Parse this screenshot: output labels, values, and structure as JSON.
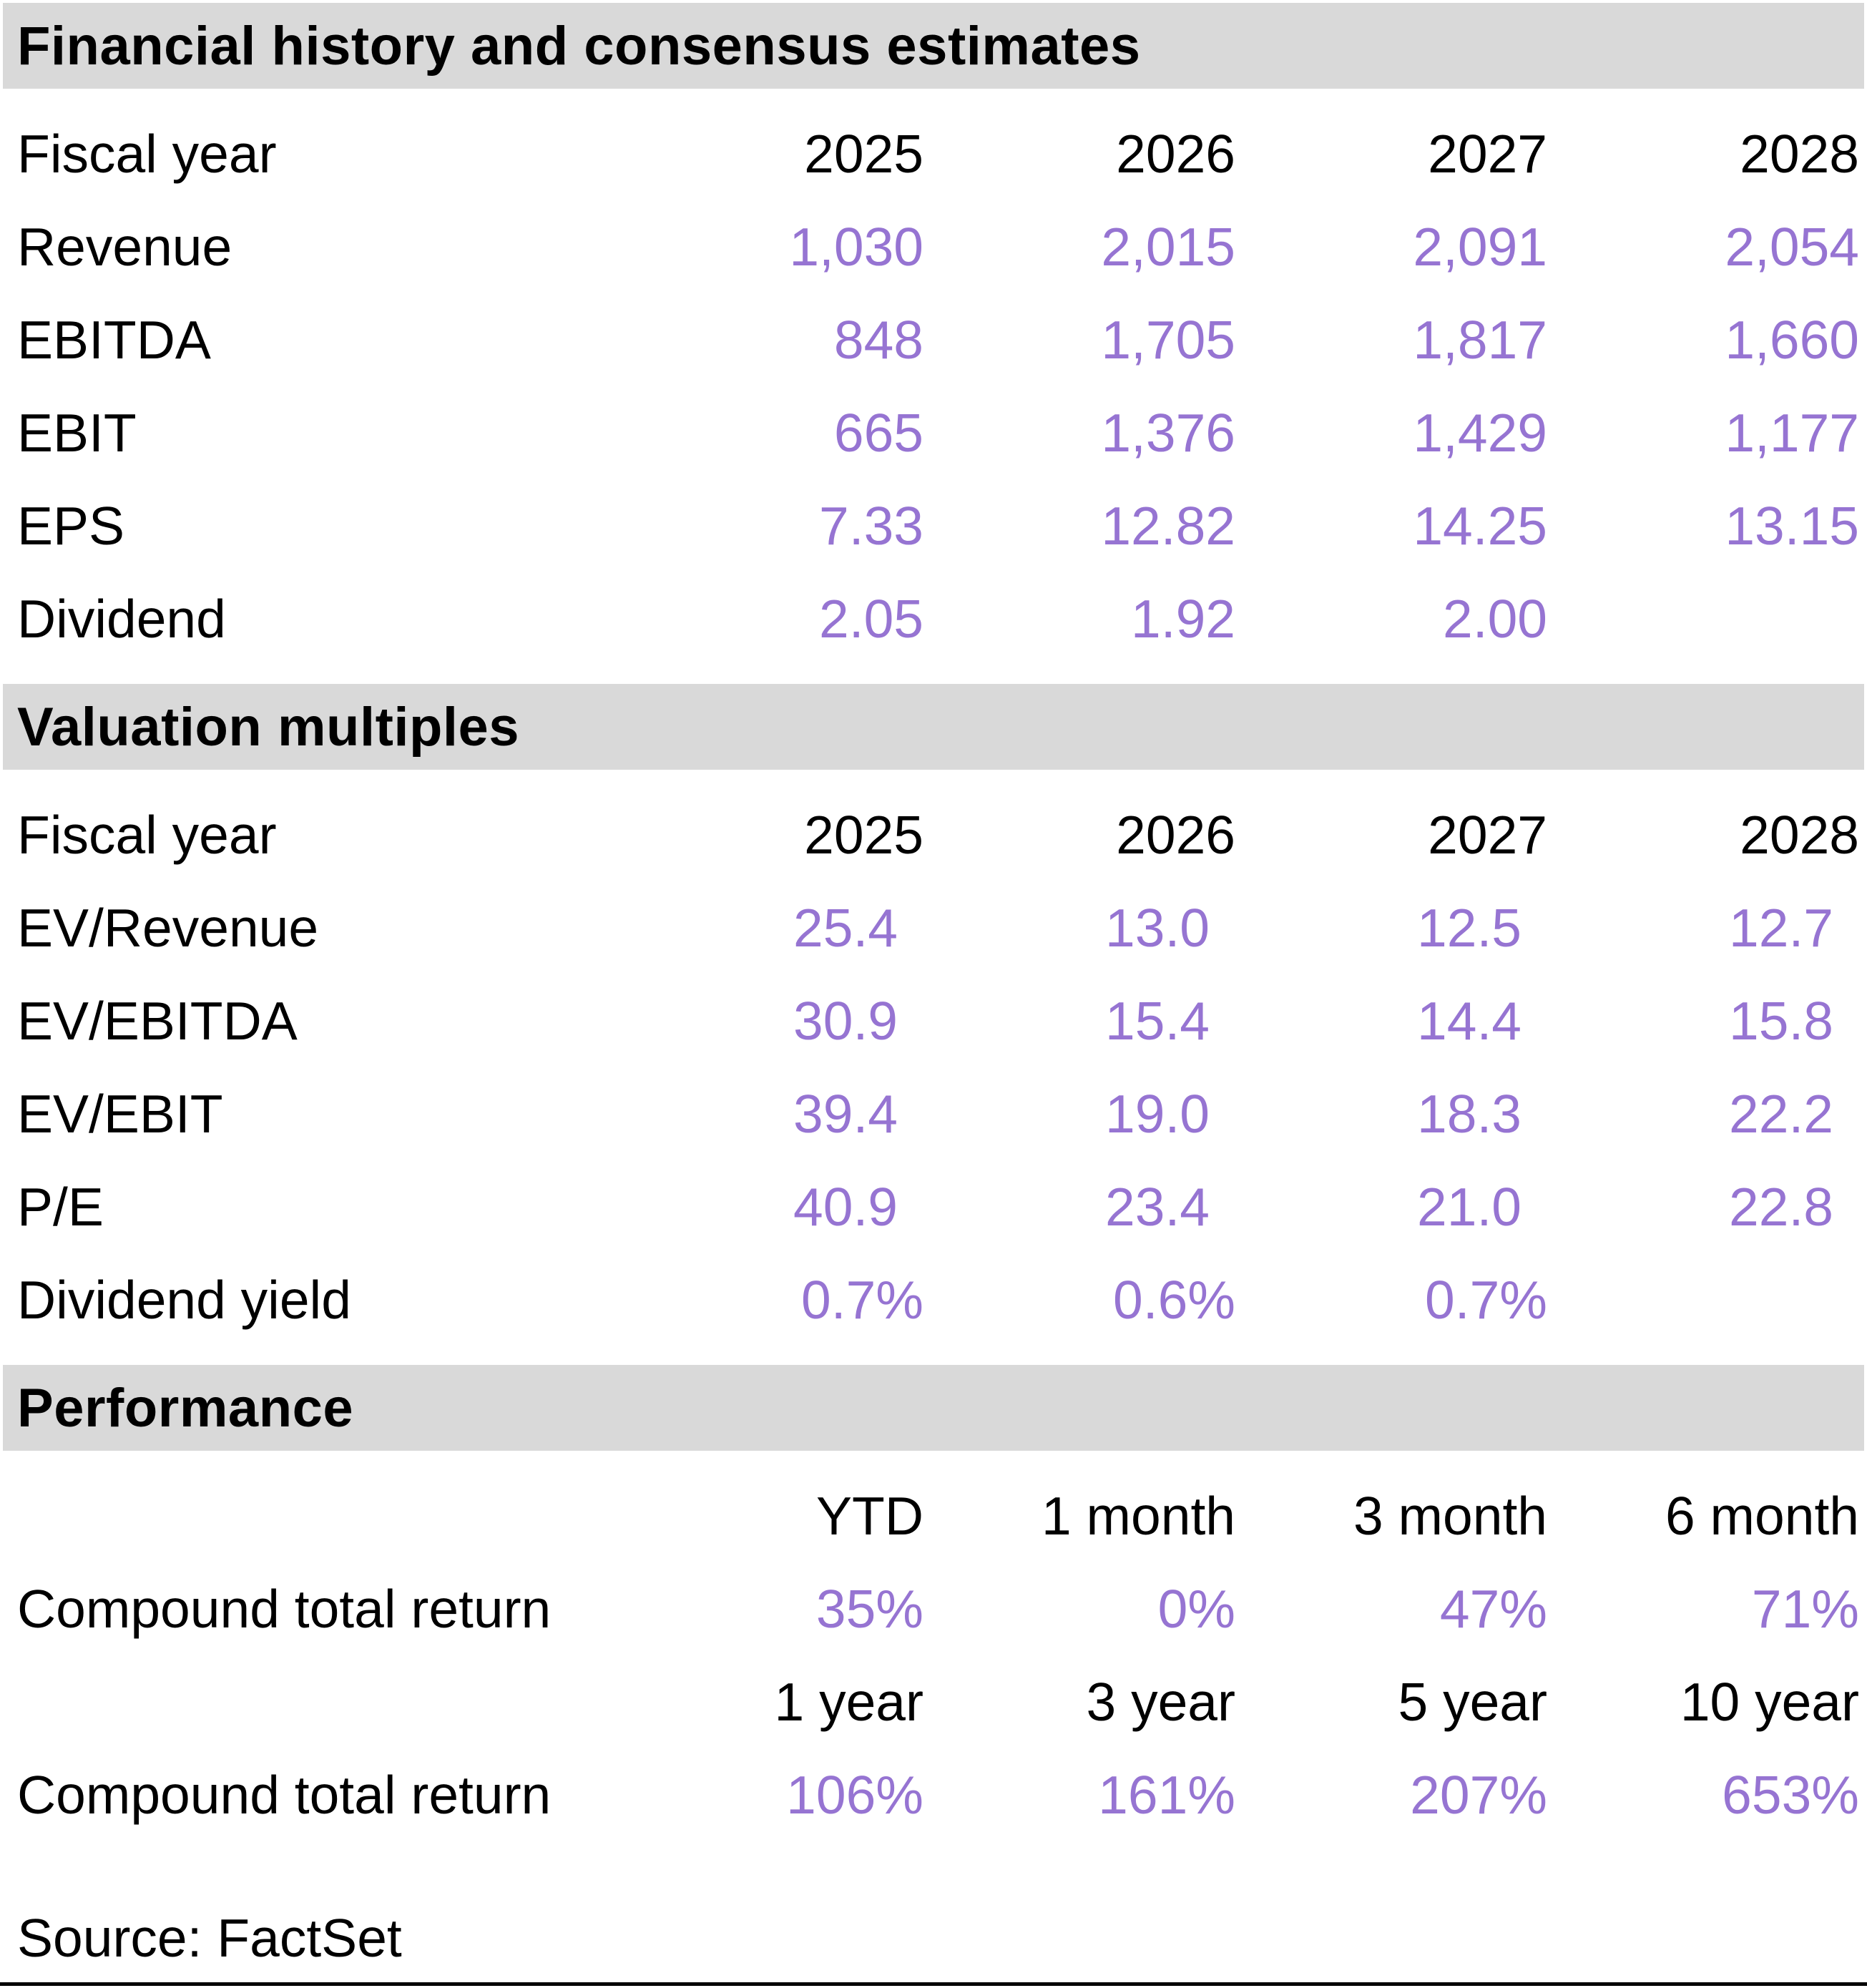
{
  "colors": {
    "accent_value_text": "#9674d2",
    "section_header_bg": "#d9d9d9"
  },
  "sections": [
    {
      "title": "Financial history and consensus estimates",
      "header_row": {
        "label": "Fiscal year",
        "cols": [
          "2025",
          "2026",
          "2027",
          "2028"
        ]
      },
      "rows": [
        {
          "label": "Revenue",
          "values": [
            "1,030",
            "2,015",
            "2,091",
            "2,054"
          ]
        },
        {
          "label": "EBITDA",
          "values": [
            "848",
            "1,705",
            "1,817",
            "1,660"
          ]
        },
        {
          "label": "EBIT",
          "values": [
            "665",
            "1,376",
            "1,429",
            "1,177"
          ]
        },
        {
          "label": "EPS",
          "values": [
            "7.33",
            "12.82",
            "14.25",
            "13.15"
          ]
        },
        {
          "label": "Dividend",
          "values": [
            "2.05",
            "1.92",
            "2.00",
            ""
          ]
        }
      ]
    },
    {
      "title": "Valuation multiples",
      "header_row": {
        "label": "Fiscal year",
        "cols": [
          "2025",
          "2026",
          "2027",
          "2028"
        ]
      },
      "rows": [
        {
          "label": "EV/Revenue",
          "values": [
            "25.4",
            "13.0",
            "12.5",
            "12.7"
          ]
        },
        {
          "label": "EV/EBITDA",
          "values": [
            "30.9",
            "15.4",
            "14.4",
            "15.8"
          ]
        },
        {
          "label": "EV/EBIT",
          "values": [
            "39.4",
            "19.0",
            "18.3",
            "22.2"
          ]
        },
        {
          "label": "P/E",
          "values": [
            "40.9",
            "23.4",
            "21.0",
            "22.8"
          ]
        },
        {
          "label": "Dividend yield",
          "values": [
            "0.7%",
            "0.6%",
            "0.7%",
            ""
          ]
        }
      ]
    },
    {
      "title": "Performance",
      "period_rows": [
        {
          "cols": [
            "YTD",
            "1 month",
            "3 month",
            "6 month"
          ]
        },
        {
          "cols": [
            "1 year",
            "3 year",
            "5 year",
            "10 year"
          ]
        }
      ],
      "return_rows": [
        {
          "label": "Compound total return",
          "values": [
            "35%",
            "0%",
            "47%",
            "71%"
          ]
        },
        {
          "label": "Compound total return",
          "values": [
            "106%",
            "161%",
            "207%",
            "653%"
          ]
        }
      ]
    }
  ],
  "source": "Source: FactSet"
}
